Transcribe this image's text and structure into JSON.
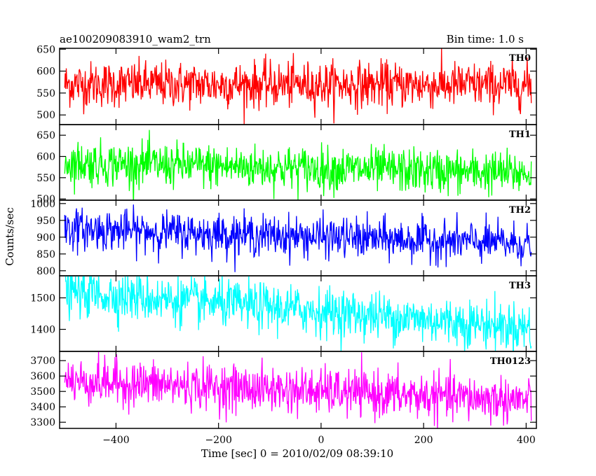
{
  "chart_data": {
    "type": "line",
    "title": "ae100209083910_wam2_trn",
    "bin_time_label": "Bin time: 1.0 s",
    "xlabel": "Time [sec] 0 = 2010/02/09 08:39:10",
    "ylabel": "Counts/sec",
    "xlim": [
      -510,
      420
    ],
    "x_ticks": [
      -400,
      -200,
      0,
      200,
      400
    ],
    "x_tick_labels": [
      "−400",
      "−200",
      "0",
      "200",
      "400"
    ],
    "x_range": [
      -500,
      410
    ],
    "panels": [
      {
        "name": "TH0",
        "color": "#ff0000",
        "ylim": [
          478,
          652
        ],
        "y_ticks": [
          500,
          550,
          600,
          650
        ],
        "y_tick_labels": [
          "500",
          "550",
          "600",
          "650"
        ],
        "mean_start": 570,
        "mean_end": 568,
        "noise": 26
      },
      {
        "name": "TH1",
        "color": "#00ff00",
        "ylim": [
          497,
          675
        ],
        "y_ticks": [
          500,
          550,
          600,
          650
        ],
        "y_tick_labels": [
          "500",
          "550",
          "600",
          "650"
        ],
        "mean_start": 585,
        "mean_end": 560,
        "noise": 26
      },
      {
        "name": "TH2",
        "color": "#0000ff",
        "ylim": [
          785,
          1010
        ],
        "y_ticks": [
          800,
          850,
          900,
          950,
          1000
        ],
        "y_tick_labels": [
          "800",
          "850",
          "900",
          "950",
          "1000"
        ],
        "mean_start": 925,
        "mean_end": 880,
        "noise": 30
      },
      {
        "name": "TH3",
        "color": "#00ffff",
        "ylim": [
          1330,
          1570
        ],
        "y_ticks": [
          1400,
          1500
        ],
        "y_tick_labels": [
          "1400",
          "1500"
        ],
        "mean_start": 1520,
        "mean_end": 1405,
        "noise": 38
      },
      {
        "name": "TH0123",
        "color": "#ff00ff",
        "ylim": [
          3260,
          3760
        ],
        "y_ticks": [
          3300,
          3400,
          3500,
          3600,
          3700
        ],
        "y_tick_labels": [
          "3300",
          "3400",
          "3500",
          "3600",
          "3700"
        ],
        "mean_start": 3570,
        "mean_end": 3440,
        "noise": 75
      }
    ]
  }
}
